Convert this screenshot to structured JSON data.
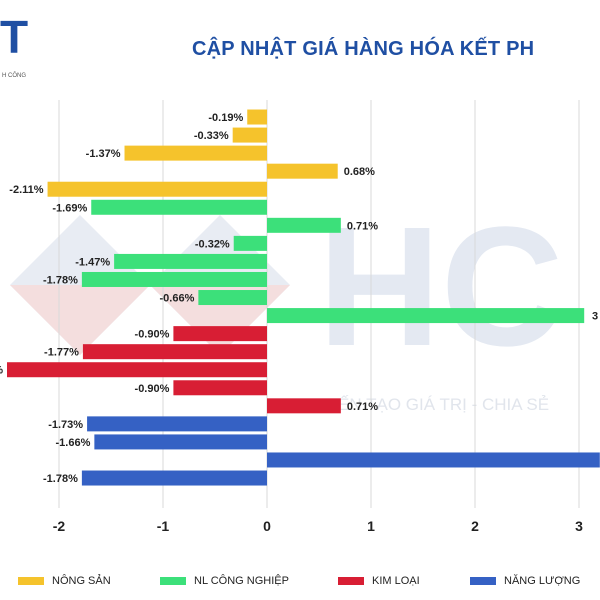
{
  "header": {
    "logo_text": "T",
    "logo_subtext": "H CÔNG",
    "title": "CẬP NHẬT GIÁ HÀNG HÓA KẾT PH"
  },
  "watermark": {
    "letters": "HC",
    "tagline": "KIẾN TẠO GIÁ TRỊ - CHIA SẺ"
  },
  "colors": {
    "nong_san": "#f5c32c",
    "nl_cong_nghiep": "#3ce07a",
    "kim_loai": "#d81e34",
    "nang_luong": "#3561c4"
  },
  "chart_data": {
    "type": "bar",
    "orientation": "horizontal",
    "xlim": [
      -2.5,
      3.2
    ],
    "x_ticks": [
      "-2",
      "-1",
      "0",
      "1",
      "2",
      "3"
    ],
    "grid": "vertical",
    "legend_position": "bottom",
    "series": [
      {
        "name": "NÔNG SẢN",
        "color": "#f5c32c",
        "values": [
          -0.19,
          -0.33,
          -1.37,
          0.68,
          -2.11
        ],
        "labels": [
          "-0.19%",
          "-0.33%",
          "-1.37%",
          "0.68%",
          "-2.11%"
        ]
      },
      {
        "name": "NL CÔNG NGHIỆP",
        "color": "#3ce07a",
        "values": [
          -1.69,
          0.71,
          -0.32,
          -1.47,
          -1.78,
          -0.66,
          3.05
        ],
        "labels": [
          "-1.69%",
          "0.71%",
          "-0.32%",
          "-1.47%",
          "-1.78%",
          "-0.66%",
          "3"
        ]
      },
      {
        "name": "KIM LOẠI",
        "color": "#d81e34",
        "values": [
          -0.9,
          -1.77,
          -2.5,
          -0.9,
          0.71
        ],
        "labels": [
          "-0.90%",
          "-1.77%",
          "%",
          "-0.90%",
          "0.71%"
        ]
      },
      {
        "name": "NĂNG LƯỢNG",
        "color": "#3561c4",
        "values": [
          -1.73,
          -1.66,
          3.2,
          -1.78
        ],
        "labels": [
          "-1.73%",
          "-1.66%",
          "",
          "-1.78%"
        ]
      }
    ]
  }
}
